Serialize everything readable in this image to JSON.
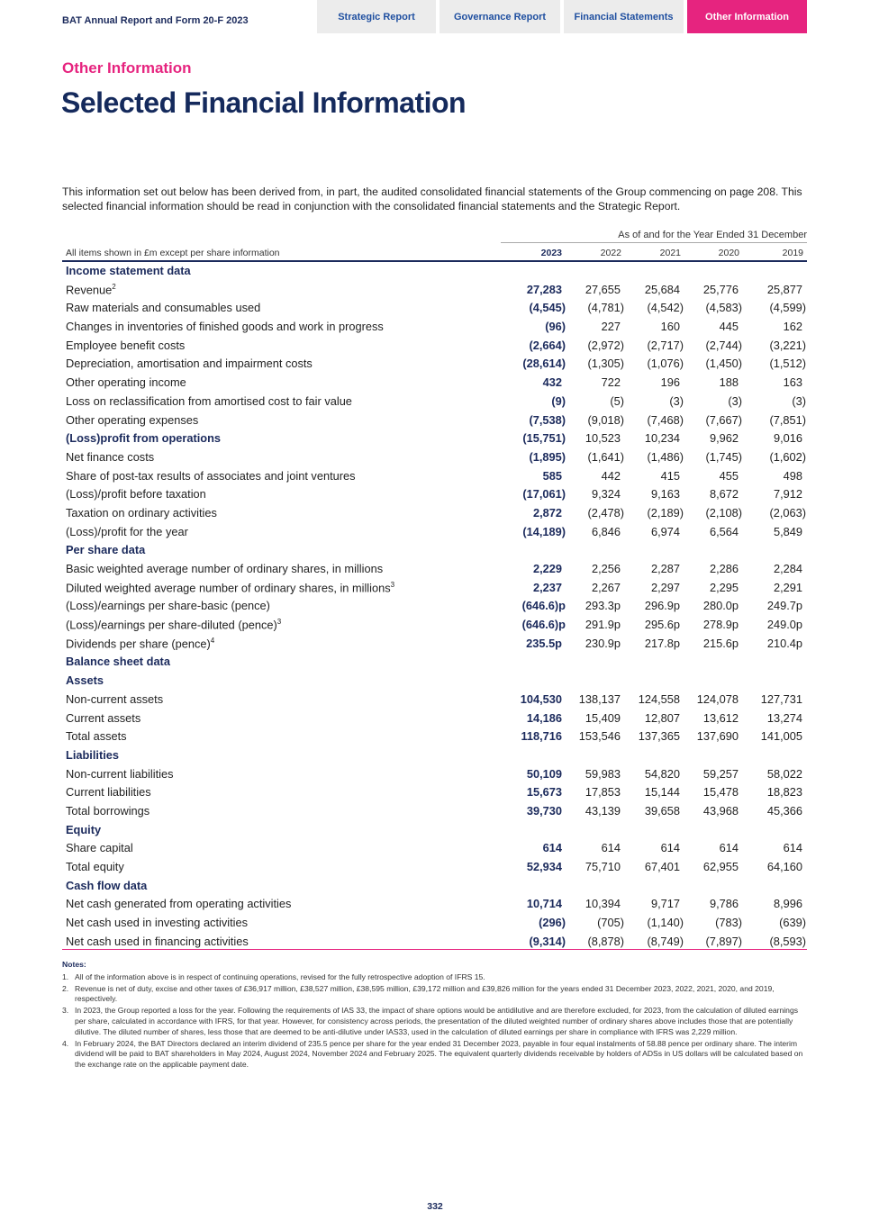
{
  "header": {
    "doc_title": "BAT Annual Report and Form 20-F 2023",
    "tabs": [
      {
        "label": "Strategic Report"
      },
      {
        "label": "Governance Report"
      },
      {
        "label": "Financial Statements"
      },
      {
        "label": "Other Information",
        "active": true
      }
    ],
    "accent": "#e6247f"
  },
  "section": "Other Information",
  "title": "Selected Financial Information",
  "intro": "This information set out below has been derived from, in part, the audited consolidated financial statements of the Group commencing on page 208. This selected financial information should be read in conjunction with the consolidated financial statements and the Strategic Report.",
  "table": {
    "caption": "As of and for the Year Ended 31 December",
    "units_note": "All items shown in £m except per share information",
    "years": [
      "2023",
      "2022",
      "2021",
      "2020",
      "2019"
    ],
    "rows": [
      {
        "type": "head",
        "label": "Income statement data"
      },
      {
        "label": "Revenue",
        "sup": "2",
        "values": [
          "27,283",
          "27,655",
          "25,684",
          "25,776",
          "25,877"
        ]
      },
      {
        "label": "Raw materials and consumables used",
        "values": [
          "(4,545)",
          "(4,781)",
          "(4,542)",
          "(4,583)",
          "(4,599)"
        ]
      },
      {
        "label": "Changes in inventories of finished goods and work in progress",
        "values": [
          "(96)",
          "227",
          "160",
          "445",
          "162"
        ]
      },
      {
        "label": "Employee benefit costs",
        "values": [
          "(2,664)",
          "(2,972)",
          "(2,717)",
          "(2,744)",
          "(3,221)"
        ]
      },
      {
        "label": "Depreciation, amortisation and impairment costs",
        "values": [
          "(28,614)",
          "(1,305)",
          "(1,076)",
          "(1,450)",
          "(1,512)"
        ]
      },
      {
        "label": "Other operating income",
        "values": [
          "432",
          "722",
          "196",
          "188",
          "163"
        ]
      },
      {
        "label": "Loss on reclassification from amortised cost to fair value",
        "values": [
          "(9)",
          "(5)",
          "(3)",
          "(3)",
          "(3)"
        ]
      },
      {
        "label": "Other operating expenses",
        "values": [
          "(7,538)",
          "(9,018)",
          "(7,468)",
          "(7,667)",
          "(7,851)"
        ]
      },
      {
        "label": "(Loss)profit from operations",
        "bold": true,
        "values": [
          "(15,751)",
          "10,523",
          "10,234",
          "9,962",
          "9,016"
        ]
      },
      {
        "label": "Net finance costs",
        "values": [
          "(1,895)",
          "(1,641)",
          "(1,486)",
          "(1,745)",
          "(1,602)"
        ]
      },
      {
        "label": "Share of post-tax results of associates and joint ventures",
        "values": [
          "585",
          "442",
          "415",
          "455",
          "498"
        ]
      },
      {
        "label": "(Loss)/profit before taxation",
        "values": [
          "(17,061)",
          "9,324",
          "9,163",
          "8,672",
          "7,912"
        ]
      },
      {
        "label": "Taxation on ordinary activities",
        "values": [
          "2,872",
          "(2,478)",
          "(2,189)",
          "(2,108)",
          "(2,063)"
        ]
      },
      {
        "label": "(Loss)/profit for the year",
        "values": [
          "(14,189)",
          "6,846",
          "6,974",
          "6,564",
          "5,849"
        ]
      },
      {
        "type": "head",
        "label": "Per share data"
      },
      {
        "label": "Basic weighted average number of ordinary shares, in millions",
        "values": [
          "2,229",
          "2,256",
          "2,287",
          "2,286",
          "2,284"
        ]
      },
      {
        "label": "Diluted weighted average number of ordinary shares, in millions",
        "sup": "3",
        "values": [
          "2,237",
          "2,267",
          "2,297",
          "2,295",
          "2,291"
        ]
      },
      {
        "label": "(Loss)/earnings per share-basic (pence)",
        "values": [
          "(646.6)p",
          "293.3p",
          "296.9p",
          "280.0p",
          "249.7p"
        ]
      },
      {
        "label": "(Loss)/earnings per share-diluted (pence)",
        "sup": "3",
        "values": [
          "(646.6)p",
          "291.9p",
          "295.6p",
          "278.9p",
          "249.0p"
        ]
      },
      {
        "label": "Dividends per share (pence)",
        "sup": "4",
        "values": [
          "235.5p",
          "230.9p",
          "217.8p",
          "215.6p",
          "210.4p"
        ]
      },
      {
        "type": "head",
        "label": "Balance sheet data"
      },
      {
        "type": "head",
        "label": "Assets"
      },
      {
        "label": "Non-current assets",
        "values": [
          "104,530",
          "138,137",
          "124,558",
          "124,078",
          "127,731"
        ]
      },
      {
        "label": "Current assets",
        "values": [
          "14,186",
          "15,409",
          "12,807",
          "13,612",
          "13,274"
        ]
      },
      {
        "label": "Total assets",
        "values": [
          "118,716",
          "153,546",
          "137,365",
          "137,690",
          "141,005"
        ]
      },
      {
        "type": "head",
        "label": "Liabilities"
      },
      {
        "label": "Non-current liabilities",
        "values": [
          "50,109",
          "59,983",
          "54,820",
          "59,257",
          "58,022"
        ]
      },
      {
        "label": "Current liabilities",
        "values": [
          "15,673",
          "17,853",
          "15,144",
          "15,478",
          "18,823"
        ]
      },
      {
        "label": "Total borrowings",
        "values": [
          "39,730",
          "43,139",
          "39,658",
          "43,968",
          "45,366"
        ]
      },
      {
        "type": "head",
        "label": "Equity"
      },
      {
        "label": "Share capital",
        "values": [
          "614",
          "614",
          "614",
          "614",
          "614"
        ]
      },
      {
        "label": "Total equity",
        "values": [
          "52,934",
          "75,710",
          "67,401",
          "62,955",
          "64,160"
        ]
      },
      {
        "type": "head",
        "label": "Cash flow data"
      },
      {
        "label": "Net cash generated from operating activities",
        "values": [
          "10,714",
          "10,394",
          "9,717",
          "9,786",
          "8,996"
        ]
      },
      {
        "label": "Net cash used in investing activities",
        "values": [
          "(296)",
          "(705)",
          "(1,140)",
          "(783)",
          "(639)"
        ]
      },
      {
        "label": "Net cash used in financing activities",
        "values": [
          "(9,314)",
          "(8,878)",
          "(8,749)",
          "(7,897)",
          "(8,593)"
        ]
      }
    ]
  },
  "notes": {
    "title": "Notes:",
    "items": [
      {
        "n": "1.",
        "text": "All of the information above is in respect of continuing operations, revised for the fully retrospective adoption of IFRS 15."
      },
      {
        "n": "2.",
        "text": "Revenue is net of duty, excise and other taxes of £36,917 million, £38,527 million, £38,595 million, £39,172 million and £39,826 million for the years ended 31 December 2023, 2022, 2021, 2020, and 2019, respectively."
      },
      {
        "n": "3.",
        "text": "In 2023, the Group reported a loss for the year. Following the requirements of IAS 33, the impact of share options would be antidilutive and are therefore excluded, for 2023, from the calculation of diluted earnings per share, calculated in accordance with IFRS, for that year. However, for consistency across periods, the presentation of the diluted weighted number of ordinary shares above includes those that are potentially dilutive. The diluted number of shares, less those that are deemed to be anti-dilutive under IAS33, used in the calculation of diluted earnings per share in compliance with IFRS was 2,229 million."
      },
      {
        "n": "4.",
        "text": "In February 2024, the BAT Directors declared an interim dividend of 235.5 pence per share for the year ended 31 December 2023, payable in four equal instalments of 58.88 pence per ordinary share. The interim dividend will be paid to BAT shareholders in May 2024, August 2024, November 2024 and February 2025. The equivalent quarterly dividends receivable by holders of ADSs in US dollars will be calculated based on the exchange rate on the applicable payment date."
      }
    ]
  },
  "page_number": "332"
}
